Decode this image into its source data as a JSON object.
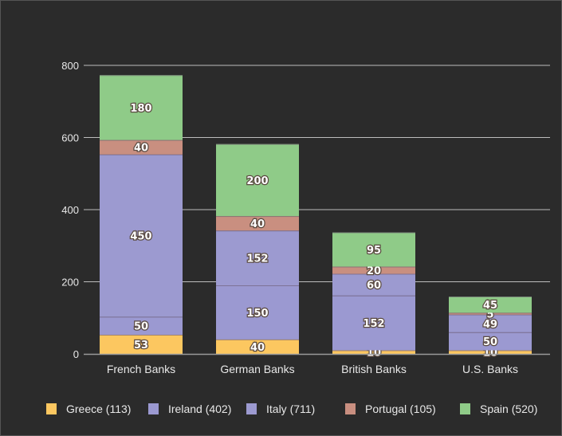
{
  "chart_data": {
    "type": "bar",
    "stacked": true,
    "title": "",
    "xlabel": "",
    "ylabel": "",
    "ylim": [
      0,
      800
    ],
    "yticks": [
      0,
      200,
      400,
      600,
      800
    ],
    "grid": true,
    "legend_position": "bottom",
    "categories": [
      "French Banks",
      "German Banks",
      "British Banks",
      "U.S. Banks"
    ],
    "series": [
      {
        "name": "Greece",
        "legend": "Greece (113)",
        "color": "#fcc760",
        "values": [
          53,
          40,
          10,
          10
        ]
      },
      {
        "name": "Ireland",
        "legend": "Ireland (402)",
        "color": "#9b99d1",
        "values": [
          50,
          150,
          152,
          50
        ]
      },
      {
        "name": "Italy",
        "legend": "Italy (711)",
        "color": "#9c9ad0",
        "values": [
          450,
          152,
          60,
          49
        ]
      },
      {
        "name": "Portugal",
        "legend": "Portugal (105)",
        "color": "#c98f80",
        "values": [
          40,
          40,
          20,
          5
        ]
      },
      {
        "name": "Spain",
        "legend": "Spain (520)",
        "color": "#8fcb88",
        "values": [
          180,
          200,
          95,
          45
        ]
      }
    ]
  }
}
